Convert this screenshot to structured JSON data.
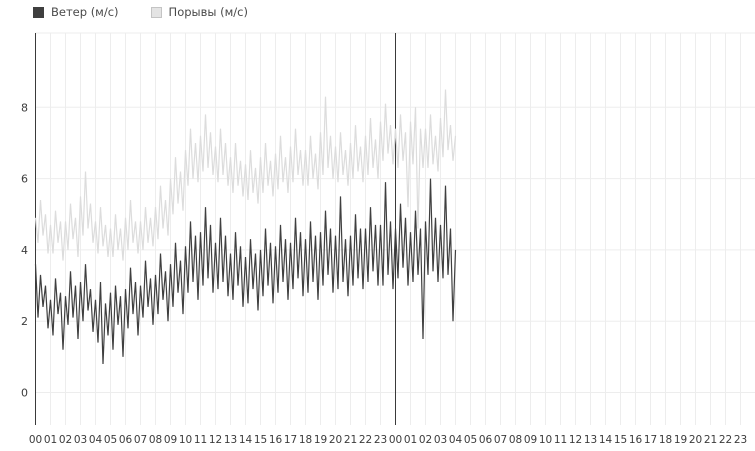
{
  "page": {
    "background": "#ffffff"
  },
  "legend": {
    "items": [
      {
        "label": "Ветер (м/с)",
        "swatch_color": "#3f3f3f",
        "swatch_border": "#3f3f3f"
      },
      {
        "label": "Порывы (м/с)",
        "swatch_color": "#e4e4e4",
        "swatch_border": "#c4c4c4"
      }
    ]
  },
  "chart_data": {
    "type": "line",
    "title": "",
    "xlabel": "",
    "ylabel": "",
    "ylim": [
      0,
      10
    ],
    "y_ticks": [
      0,
      2,
      4,
      6,
      8
    ],
    "grid": true,
    "legend_position": "top-left",
    "axis_color": "#3a3a3a",
    "grid_color": "#ededed",
    "label_color": "#3c3c3c",
    "sample_interval_minutes": 10,
    "hours_shown": 48,
    "day_boundary_hour_index": 24,
    "x_tick_labels": [
      "00",
      "01",
      "02",
      "03",
      "04",
      "05",
      "06",
      "07",
      "08",
      "09",
      "10",
      "11",
      "12",
      "13",
      "14",
      "15",
      "16",
      "17",
      "18",
      "19",
      "20",
      "21",
      "22",
      "23",
      "00",
      "01",
      "02",
      "03",
      "04",
      "05",
      "06",
      "07",
      "08",
      "09",
      "10",
      "11",
      "12",
      "13",
      "14",
      "15",
      "16",
      "17",
      "18",
      "19",
      "20",
      "21",
      "22",
      "23"
    ],
    "series": [
      {
        "name": "Ветер (м/с)",
        "color": "#3f3f3f",
        "values": [
          3.6,
          2.1,
          3.3,
          2.4,
          3.0,
          1.8,
          2.6,
          1.6,
          3.2,
          2.2,
          2.8,
          1.2,
          2.7,
          1.9,
          3.4,
          2.1,
          3.0,
          1.5,
          3.1,
          2.0,
          3.6,
          2.3,
          2.9,
          1.7,
          2.6,
          1.4,
          3.1,
          0.8,
          2.5,
          1.6,
          2.8,
          1.2,
          3.0,
          1.9,
          2.7,
          1.0,
          2.9,
          1.8,
          3.5,
          2.2,
          3.1,
          1.6,
          3.0,
          2.1,
          3.7,
          2.4,
          3.2,
          1.9,
          3.3,
          2.2,
          3.9,
          2.6,
          3.4,
          2.0,
          3.6,
          2.4,
          4.2,
          2.8,
          3.7,
          2.2,
          4.1,
          2.8,
          4.8,
          3.1,
          4.4,
          2.6,
          4.5,
          3.0,
          5.2,
          3.2,
          4.7,
          2.8,
          4.2,
          2.9,
          4.9,
          3.1,
          4.4,
          2.7,
          3.9,
          2.6,
          4.5,
          3.0,
          4.1,
          2.4,
          3.8,
          2.5,
          4.3,
          2.9,
          3.9,
          2.3,
          4.0,
          2.7,
          4.6,
          3.0,
          4.2,
          2.5,
          4.1,
          2.8,
          4.7,
          3.1,
          4.3,
          2.6,
          4.2,
          2.9,
          4.9,
          3.2,
          4.5,
          2.7,
          4.3,
          2.8,
          4.8,
          3.1,
          4.4,
          2.6,
          4.5,
          3.0,
          5.1,
          3.3,
          4.6,
          2.8,
          4.4,
          2.9,
          5.5,
          3.1,
          4.3,
          2.7,
          4.4,
          3.0,
          5.0,
          3.2,
          4.6,
          2.9,
          4.6,
          3.1,
          5.2,
          3.4,
          4.7,
          3.0,
          4.7,
          3.0,
          5.9,
          3.3,
          4.8,
          2.9,
          4.6,
          3.2,
          5.3,
          3.5,
          4.9,
          3.0,
          4.5,
          3.1,
          5.1,
          3.3,
          4.6,
          1.5,
          4.8,
          3.3,
          6.0,
          3.4,
          4.9,
          3.1,
          4.7,
          3.2,
          5.8,
          3.3,
          4.6,
          2.0,
          4.0
        ]
      },
      {
        "name": "Порывы (м/с)",
        "color": "#dcdcdc",
        "values": [
          4.9,
          4.2,
          5.4,
          4.4,
          5.0,
          3.9,
          4.7,
          3.9,
          5.1,
          4.2,
          4.8,
          3.7,
          4.8,
          4.0,
          5.3,
          4.3,
          4.9,
          3.8,
          5.5,
          4.4,
          6.2,
          4.6,
          5.3,
          4.2,
          4.8,
          3.9,
          5.2,
          4.1,
          4.7,
          3.8,
          4.6,
          3.8,
          5.0,
          4.0,
          4.6,
          3.7,
          4.9,
          4.0,
          5.4,
          4.2,
          4.8,
          3.9,
          4.8,
          4.0,
          5.2,
          4.2,
          4.9,
          4.1,
          5.2,
          4.3,
          5.8,
          4.6,
          5.4,
          4.4,
          6.0,
          5.0,
          6.6,
          5.3,
          6.2,
          5.1,
          6.8,
          5.8,
          7.4,
          6.0,
          7.0,
          5.9,
          7.2,
          6.2,
          7.8,
          6.3,
          7.3,
          6.1,
          6.9,
          5.9,
          7.4,
          6.1,
          7.0,
          5.8,
          6.6,
          5.6,
          7.0,
          5.8,
          6.5,
          5.5,
          6.4,
          5.4,
          6.8,
          5.6,
          6.3,
          5.3,
          6.6,
          5.6,
          7.0,
          5.8,
          6.5,
          5.5,
          6.7,
          5.7,
          7.2,
          5.9,
          6.6,
          5.6,
          6.9,
          5.9,
          7.4,
          6.1,
          6.8,
          5.8,
          6.8,
          5.8,
          7.2,
          6.0,
          6.7,
          5.7,
          7.3,
          6.1,
          8.3,
          6.3,
          7.2,
          6.0,
          6.9,
          5.9,
          7.3,
          6.1,
          6.8,
          5.8,
          7.0,
          6.0,
          7.5,
          6.2,
          6.9,
          5.9,
          7.2,
          6.1,
          7.7,
          6.3,
          7.1,
          6.0,
          7.6,
          6.5,
          8.1,
          6.7,
          7.5,
          6.4,
          7.4,
          6.3,
          7.8,
          6.5,
          7.3,
          5.2,
          7.6,
          6.4,
          8.0,
          4.6,
          7.4,
          6.3,
          7.4,
          6.3,
          7.8,
          6.4,
          7.2,
          6.2,
          7.7,
          6.6,
          8.5,
          6.8,
          7.5,
          6.5,
          7.2
        ]
      }
    ]
  }
}
